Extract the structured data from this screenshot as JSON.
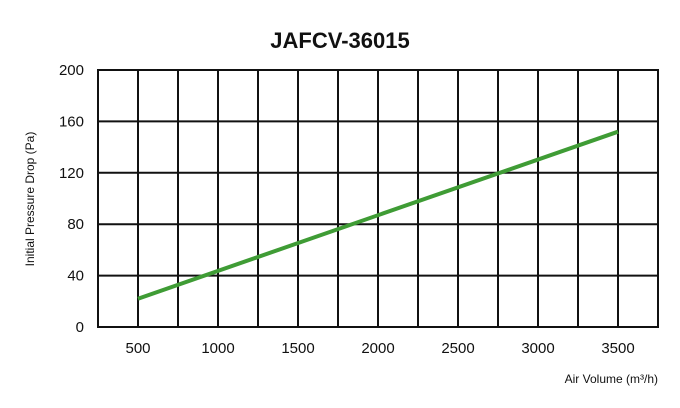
{
  "chart_data": {
    "type": "line",
    "title": "JAFCV-36015",
    "xlabel": "Air Volume (m³/h)",
    "ylabel": "Initial Pressure Drop (Pa)",
    "xlim": [
      250,
      3750
    ],
    "ylim": [
      0,
      200
    ],
    "x_ticks": [
      500,
      1000,
      1500,
      2000,
      2500,
      3000,
      3500
    ],
    "y_ticks": [
      0,
      40,
      80,
      120,
      160,
      200
    ],
    "grid": true,
    "series": [
      {
        "color": "#3f9c35",
        "x": [
          500,
          3500
        ],
        "y": [
          22,
          152
        ]
      }
    ]
  }
}
